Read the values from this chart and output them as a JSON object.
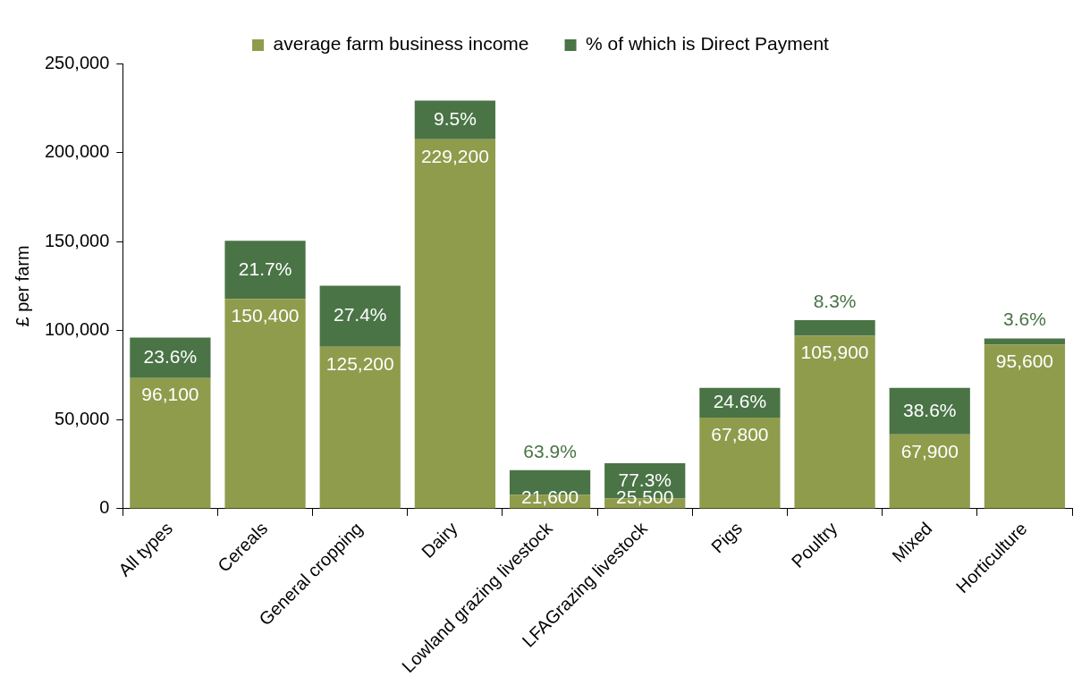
{
  "chart_data": {
    "type": "bar",
    "stacked": true,
    "ylabel": "£ per farm",
    "categories": [
      "All types",
      "Cereals",
      "General cropping",
      "Dairy",
      "Lowland grazing livestock",
      "LFAGrazing livestock",
      "Pigs",
      "Poultry",
      "Mixed",
      "Horticulture"
    ],
    "series": [
      {
        "name": "average farm business income",
        "color": "#8f9c4b",
        "values": [
          73400,
          117800,
          90900,
          207400,
          7800,
          5800,
          51100,
          97100,
          41700,
          92200
        ]
      },
      {
        "name": "% of which is Direct Payment",
        "color": "#4a7446",
        "values": [
          22700,
          32600,
          34300,
          21800,
          13800,
          19700,
          16700,
          8800,
          26200,
          3400
        ]
      }
    ],
    "annotations": [
      "96,100",
      "23.6%",
      "150,400",
      "21.7%",
      "125,200",
      "27.4%",
      "229,200",
      "9.5%",
      "21,600",
      "63.9%",
      "25,500",
      "77.3%",
      "67,800",
      "24.6%",
      "105,900",
      "8.3%",
      "67,900",
      "38.6%",
      "95,600",
      "3.6%"
    ],
    "ylim": [
      0,
      250000
    ],
    "yticks": [
      {
        "value": 0,
        "label": "0"
      },
      {
        "value": 50000,
        "label": "50,000"
      },
      {
        "value": 100000,
        "label": "100,000"
      },
      {
        "value": 150000,
        "label": "150,000"
      },
      {
        "value": 200000,
        "label": "200,000"
      },
      {
        "value": 250000,
        "label": "250,000"
      }
    ],
    "grid": false,
    "legend": "top"
  }
}
